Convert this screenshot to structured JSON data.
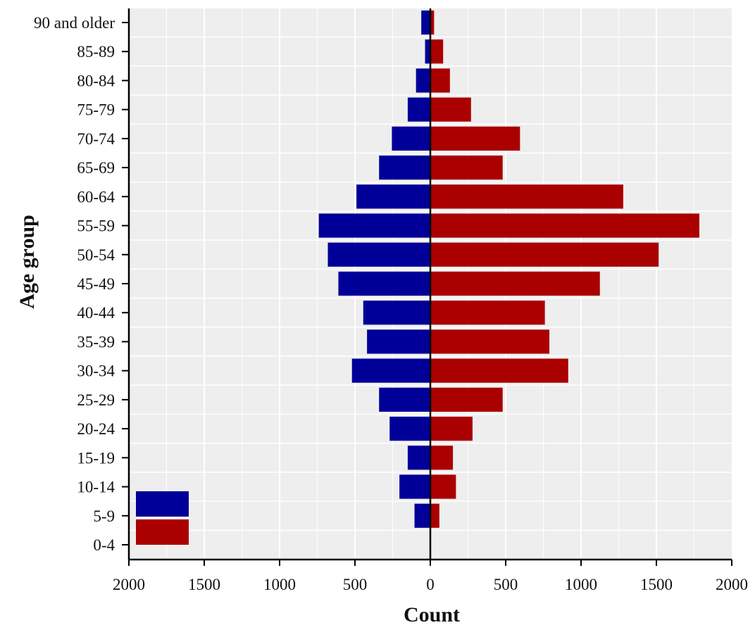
{
  "chart_data": {
    "type": "bar",
    "orientation": "horizontal",
    "layout": "population-pyramid",
    "xlabel": "Count",
    "ylabel": "Age group",
    "categories": [
      "0-4",
      "5-9",
      "10-14",
      "15-19",
      "20-24",
      "25-29",
      "30-34",
      "35-39",
      "40-44",
      "45-49",
      "50-54",
      "55-59",
      "60-64",
      "65-69",
      "70-74",
      "75-79",
      "80-84",
      "85-89",
      "90 and older"
    ],
    "xlim": [
      -2000,
      2000
    ],
    "x_tick_labels": [
      "2000",
      "1500",
      "1000",
      "500",
      "0",
      "500",
      "1000",
      "1500",
      "2000"
    ],
    "grid": true,
    "legend_position": "bottom-left",
    "series": [
      {
        "color": "#000099",
        "side": "left",
        "values": [
          0,
          105,
          205,
          150,
          270,
          340,
          520,
          420,
          445,
          610,
          680,
          740,
          490,
          340,
          255,
          150,
          95,
          35,
          60
        ]
      },
      {
        "color": "#AA0000",
        "side": "right",
        "values": [
          0,
          60,
          170,
          150,
          280,
          480,
          915,
          790,
          760,
          1125,
          1515,
          1785,
          1280,
          480,
          595,
          270,
          130,
          85,
          25
        ]
      }
    ]
  }
}
